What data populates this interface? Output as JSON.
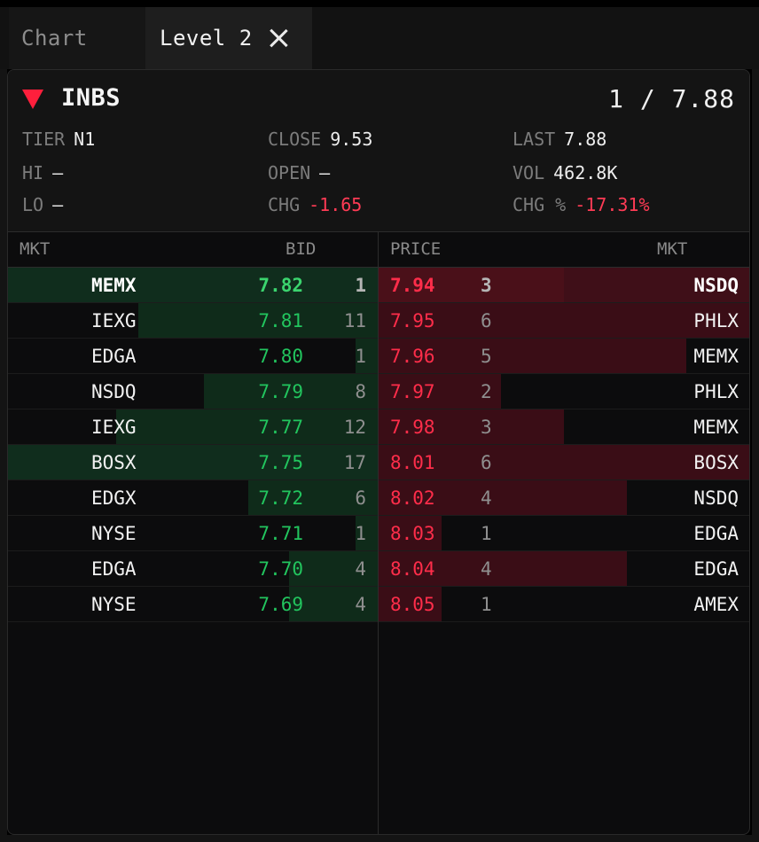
{
  "tabs": [
    {
      "label": "Chart",
      "active": false
    },
    {
      "label": "Level 2",
      "active": true
    }
  ],
  "header": {
    "symbol": "INBS",
    "direction_icon": "down-triangle-icon",
    "summary": "1 / 7.88",
    "stats": {
      "tier": {
        "label": "TIER",
        "value": "N1"
      },
      "close": {
        "label": "CLOSE",
        "value": "9.53"
      },
      "last": {
        "label": "LAST",
        "value": "7.88"
      },
      "hi": {
        "label": "HI",
        "value": "—"
      },
      "open": {
        "label": "OPEN",
        "value": "—"
      },
      "vol": {
        "label": "VOL",
        "value": "462.8K"
      },
      "lo": {
        "label": "LO",
        "value": "—"
      },
      "chg": {
        "label": "CHG",
        "value": "-1.65"
      },
      "chg_pct": {
        "label": "CHG %",
        "value": "-17.31%"
      }
    }
  },
  "columns": {
    "bid_mkt": "MKT",
    "bid": "BID",
    "price": "PRICE",
    "ask_mkt": "MKT"
  },
  "colors": {
    "bid_text": "#22c55e",
    "ask_text": "#ff2d4a",
    "bid_bar": "#0f2b1a",
    "ask_bar": "#3a0d16",
    "negative": "#ff3b55"
  },
  "bids": [
    {
      "mkt": "MEMX",
      "price": "7.82",
      "size": "1",
      "bar_fraction": 0.1,
      "full": true,
      "bold": true
    },
    {
      "mkt": "IEXG",
      "price": "7.81",
      "size": "11",
      "bar_fraction": 0.65,
      "full": false,
      "bold": false
    },
    {
      "mkt": "EDGA",
      "price": "7.80",
      "size": "1",
      "bar_fraction": 0.06,
      "full": false,
      "bold": false
    },
    {
      "mkt": "NSDQ",
      "price": "7.79",
      "size": "8",
      "bar_fraction": 0.47,
      "full": false,
      "bold": false
    },
    {
      "mkt": "IEXG",
      "price": "7.77",
      "size": "12",
      "bar_fraction": 0.71,
      "full": false,
      "bold": false
    },
    {
      "mkt": "BOSX",
      "price": "7.75",
      "size": "17",
      "bar_fraction": 1.0,
      "full": true,
      "bold": false
    },
    {
      "mkt": "EDGX",
      "price": "7.72",
      "size": "6",
      "bar_fraction": 0.35,
      "full": false,
      "bold": false
    },
    {
      "mkt": "NYSE",
      "price": "7.71",
      "size": "1",
      "bar_fraction": 0.06,
      "full": false,
      "bold": false
    },
    {
      "mkt": "EDGA",
      "price": "7.70",
      "size": "4",
      "bar_fraction": 0.24,
      "full": false,
      "bold": false
    },
    {
      "mkt": "NYSE",
      "price": "7.69",
      "size": "4",
      "bar_fraction": 0.24,
      "full": false,
      "bold": false
    }
  ],
  "asks": [
    {
      "price": "7.94",
      "size": "3",
      "mkt": "NSDQ",
      "bar_fraction": 0.5,
      "full": true,
      "bold": true
    },
    {
      "price": "7.95",
      "size": "6",
      "mkt": "PHLX",
      "bar_fraction": 1.0,
      "full": false,
      "bold": false
    },
    {
      "price": "7.96",
      "size": "5",
      "mkt": "MEMX",
      "bar_fraction": 0.83,
      "full": false,
      "bold": false
    },
    {
      "price": "7.97",
      "size": "2",
      "mkt": "PHLX",
      "bar_fraction": 0.33,
      "full": false,
      "bold": false
    },
    {
      "price": "7.98",
      "size": "3",
      "mkt": "MEMX",
      "bar_fraction": 0.5,
      "full": false,
      "bold": false
    },
    {
      "price": "8.01",
      "size": "6",
      "mkt": "BOSX",
      "bar_fraction": 1.0,
      "full": false,
      "bold": false
    },
    {
      "price": "8.02",
      "size": "4",
      "mkt": "NSDQ",
      "bar_fraction": 0.67,
      "full": false,
      "bold": false
    },
    {
      "price": "8.03",
      "size": "1",
      "mkt": "EDGA",
      "bar_fraction": 0.17,
      "full": false,
      "bold": false
    },
    {
      "price": "8.04",
      "size": "4",
      "mkt": "EDGA",
      "bar_fraction": 0.67,
      "full": false,
      "bold": false
    },
    {
      "price": "8.05",
      "size": "1",
      "mkt": "AMEX",
      "bar_fraction": 0.17,
      "full": false,
      "bold": false
    }
  ]
}
